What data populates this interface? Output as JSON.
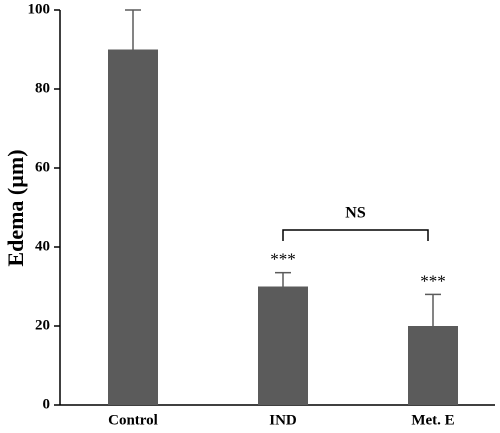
{
  "chart_data": {
    "type": "bar",
    "y_label": "Edema (µm)",
    "categories": [
      "Control",
      "IND",
      "Met. E"
    ],
    "values": [
      90,
      30,
      20
    ],
    "errors": [
      10,
      3.5,
      8
    ],
    "value_annotations": [
      null,
      "***",
      "***"
    ],
    "comparison_label": "NS",
    "color": "#5b5b5b",
    "ylim": [
      0,
      100
    ],
    "yticks": [
      0,
      20,
      40,
      60,
      80,
      100
    ]
  }
}
